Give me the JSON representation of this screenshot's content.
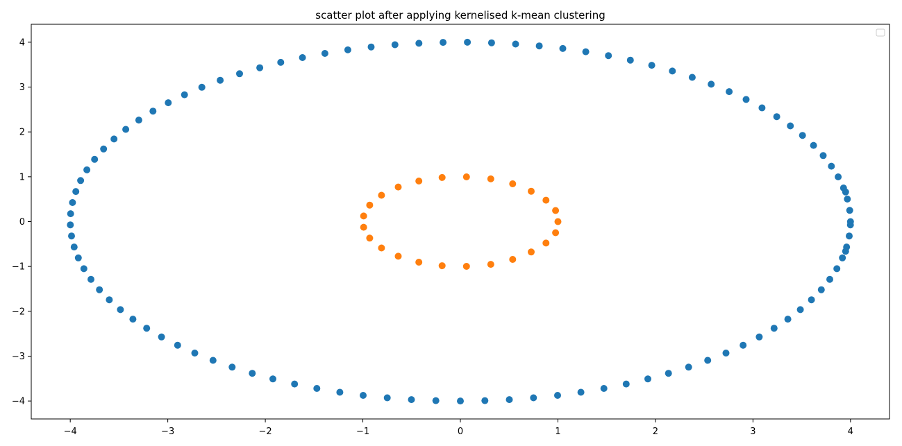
{
  "chart_data": {
    "type": "scatter",
    "title": "scatter plot after applying kernelised k-mean clustering",
    "xlabel": "",
    "ylabel": "",
    "xlim": [
      -4.4,
      4.4
    ],
    "ylim": [
      -4.4,
      4.4
    ],
    "xticks": [
      -4,
      -3,
      -2,
      -1,
      0,
      1,
      2,
      3,
      4
    ],
    "yticks": [
      -4,
      -3,
      -2,
      -1,
      0,
      1,
      2,
      3,
      4
    ],
    "xtick_labels": [
      "−4",
      "−3",
      "−2",
      "−1",
      "0",
      "1",
      "2",
      "3",
      "4"
    ],
    "ytick_labels": [
      "−4",
      "−3",
      "−2",
      "−1",
      "0",
      "1",
      "2",
      "3",
      "4"
    ],
    "grid": false,
    "legend": "top-right (empty)",
    "series": [
      {
        "color": "#1f77b4",
        "points": [
          [
            4,
            0
          ],
          [
            3.992,
            0.251
          ],
          [
            3.968,
            0.502
          ],
          [
            3.929,
            0.75
          ],
          [
            3.874,
            0.997
          ],
          [
            3.804,
            1.236
          ],
          [
            3.72,
            1.472
          ],
          [
            3.621,
            1.7
          ],
          [
            3.508,
            1.922
          ],
          [
            3.383,
            2.134
          ],
          [
            3.244,
            2.34
          ],
          [
            3.093,
            2.536
          ],
          [
            2.93,
            2.723
          ],
          [
            2.756,
            2.899
          ],
          [
            2.572,
            3.064
          ],
          [
            2.377,
            3.217
          ],
          [
            2.174,
            3.358
          ],
          [
            1.962,
            3.486
          ],
          [
            1.743,
            3.6
          ],
          [
            1.518,
            3.701
          ],
          [
            1.286,
            3.788
          ],
          [
            1.05,
            3.86
          ],
          [
            0.809,
            3.917
          ],
          [
            0.566,
            3.96
          ],
          [
            0.32,
            3.987
          ],
          [
            0.072,
            3.999
          ],
          [
            -0.177,
            3.996
          ],
          [
            -0.425,
            3.977
          ],
          [
            -0.671,
            3.943
          ],
          [
            -0.915,
            3.894
          ],
          [
            -1.154,
            3.83
          ],
          [
            -1.389,
            3.751
          ],
          [
            -1.619,
            3.658
          ],
          [
            -1.842,
            3.551
          ],
          [
            -2.057,
            3.431
          ],
          [
            -2.264,
            3.297
          ],
          [
            -2.463,
            3.152
          ],
          [
            -2.651,
            2.995
          ],
          [
            -2.829,
            2.828
          ],
          [
            -2.995,
            2.651
          ],
          [
            -3.152,
            2.463
          ],
          [
            -3.297,
            2.264
          ],
          [
            -3.431,
            2.057
          ],
          [
            -3.551,
            1.842
          ],
          [
            -3.658,
            1.619
          ],
          [
            -3.751,
            1.389
          ],
          [
            -3.83,
            1.154
          ],
          [
            -3.894,
            0.915
          ],
          [
            -3.943,
            0.671
          ],
          [
            -3.977,
            0.425
          ],
          [
            -3.996,
            0.177
          ],
          [
            -3.999,
            -0.072
          ],
          [
            -3.987,
            -0.32
          ],
          [
            -3.96,
            -0.566
          ],
          [
            -3.917,
            -0.809
          ],
          [
            -3.86,
            -1.05
          ],
          [
            -3.788,
            -1.286
          ],
          [
            -3.701,
            -1.518
          ],
          [
            -3.6,
            -1.743
          ],
          [
            -3.486,
            -1.962
          ],
          [
            -3.358,
            -2.174
          ],
          [
            -3.217,
            -2.377
          ],
          [
            -3.064,
            -2.572
          ],
          [
            -2.899,
            -2.756
          ],
          [
            -2.723,
            -2.93
          ],
          [
            -2.536,
            -3.093
          ],
          [
            -2.34,
            -3.244
          ],
          [
            -2.134,
            -3.383
          ],
          [
            -1.922,
            -3.508
          ],
          [
            -1.7,
            -3.621
          ],
          [
            -1.472,
            -3.72
          ],
          [
            -1.236,
            -3.804
          ],
          [
            -0.997,
            -3.874
          ],
          [
            -0.75,
            -3.929
          ],
          [
            -0.502,
            -3.968
          ],
          [
            -0.251,
            -3.992
          ],
          [
            0,
            -4
          ],
          [
            0.251,
            -3.992
          ],
          [
            0.502,
            -3.968
          ],
          [
            0.75,
            -3.929
          ],
          [
            0.997,
            -3.874
          ],
          [
            1.236,
            -3.804
          ],
          [
            1.472,
            -3.72
          ],
          [
            1.7,
            -3.621
          ],
          [
            1.922,
            -3.508
          ],
          [
            2.134,
            -3.383
          ],
          [
            2.34,
            -3.244
          ],
          [
            2.536,
            -3.093
          ],
          [
            2.723,
            -2.93
          ],
          [
            2.899,
            -2.756
          ],
          [
            3.064,
            -2.572
          ],
          [
            3.217,
            -2.377
          ],
          [
            3.358,
            -2.174
          ],
          [
            3.486,
            -1.962
          ],
          [
            3.6,
            -1.743
          ],
          [
            3.701,
            -1.518
          ],
          [
            3.788,
            -1.286
          ],
          [
            3.86,
            -1.05
          ],
          [
            3.917,
            -0.809
          ],
          [
            3.96,
            -0.566
          ],
          [
            3.987,
            -0.32
          ],
          [
            3.999,
            -0.072
          ],
          [
            3.95,
            0.66
          ],
          [
            3.95,
            -0.66
          ]
        ]
      },
      {
        "color": "#ff7f0e",
        "points": [
          [
            1.0,
            0.0
          ],
          [
            0.976,
            0.248
          ],
          [
            0.976,
            -0.248
          ],
          [
            0.878,
            0.478
          ],
          [
            0.878,
            -0.478
          ],
          [
            0.726,
            0.677
          ],
          [
            0.726,
            -0.677
          ],
          [
            0.536,
            0.843
          ],
          [
            0.536,
            -0.843
          ],
          [
            0.312,
            0.953
          ],
          [
            0.312,
            -0.953
          ],
          [
            0.063,
            0.998
          ],
          [
            0.063,
            -0.998
          ],
          [
            -0.187,
            0.983
          ],
          [
            -0.187,
            -0.983
          ],
          [
            -0.426,
            0.905
          ],
          [
            -0.426,
            -0.905
          ],
          [
            -0.637,
            0.771
          ],
          [
            -0.637,
            -0.771
          ],
          [
            -0.809,
            0.588
          ],
          [
            -0.809,
            -0.588
          ],
          [
            -0.93,
            0.368
          ],
          [
            -0.93,
            -0.368
          ],
          [
            -0.992,
            0.125
          ],
          [
            -0.992,
            -0.125
          ]
        ]
      }
    ]
  }
}
